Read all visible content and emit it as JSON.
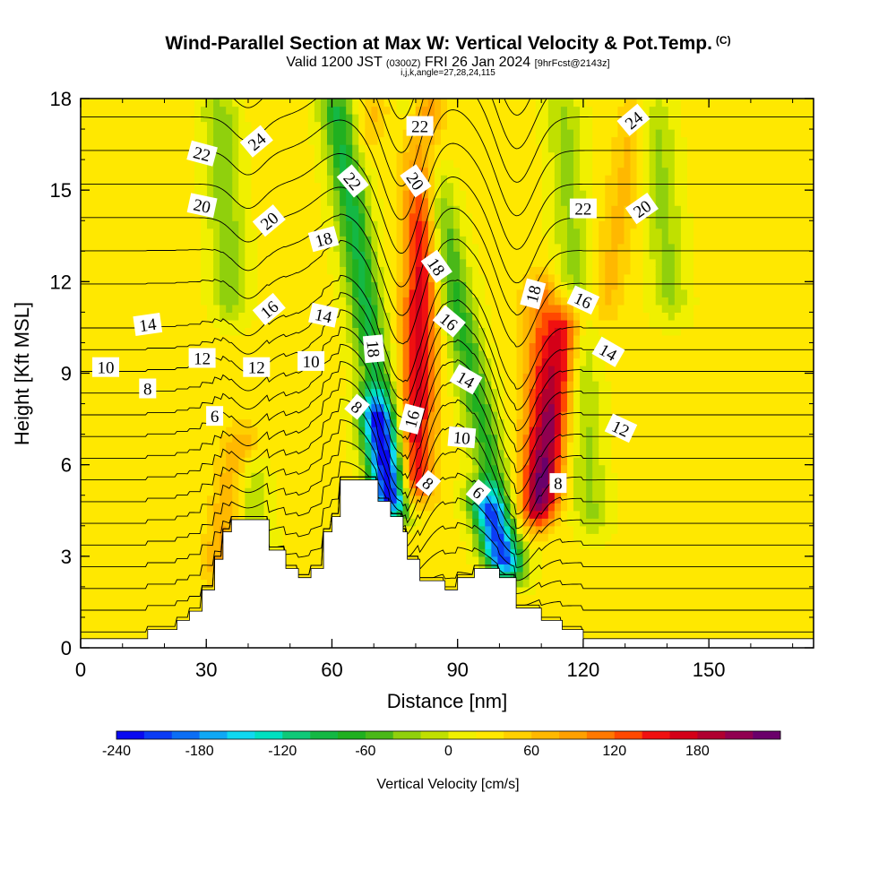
{
  "header": {
    "title": "Wind-Parallel Section at Max W: Vertical Velocity & Pot.Temp.",
    "title_mark": "(C)",
    "valid_prefix": "Valid 1200 JST",
    "valid_utc": "(0300Z)",
    "valid_date": "FRI 26 Jan 2024",
    "forecast": "[9hrFcst@2143z]",
    "grid_info": "i,j,k,angle=27,28,24,115"
  },
  "chart_data": {
    "type": "heatmap",
    "xlabel": "Distance [nm]",
    "ylabel": "Height [Kft MSL]",
    "xlim": [
      0,
      175
    ],
    "ylim": [
      0,
      18
    ],
    "x_ticks": [
      "0",
      "30",
      "60",
      "90",
      "120",
      "150"
    ],
    "y_ticks": [
      "0",
      "3",
      "6",
      "9",
      "12",
      "15",
      "18"
    ],
    "grid": false,
    "colorbar": {
      "title": "Vertical Velocity [cm/s]",
      "tick_labels": [
        "-240",
        "-180",
        "-120",
        "-60",
        "0",
        "60",
        "120",
        "180"
      ],
      "min": -240,
      "max": 220,
      "step": 20,
      "colors": [
        "#0a0af0",
        "#0c3cf5",
        "#0c6ef5",
        "#10a8f5",
        "#10d8f0",
        "#00e0c0",
        "#10c878",
        "#14b844",
        "#20b020",
        "#4ab818",
        "#90d00c",
        "#c0e000",
        "#f0f000",
        "#ffe800",
        "#ffd000",
        "#ffb800",
        "#ffa000",
        "#ff7800",
        "#ff4800",
        "#f01010",
        "#d40018",
        "#b00030",
        "#900050",
        "#6a006a"
      ]
    },
    "terrain_profile_kft": [
      [
        0,
        0.3
      ],
      [
        16,
        0.3
      ],
      [
        16,
        0.6
      ],
      [
        23,
        0.6
      ],
      [
        23,
        0.9
      ],
      [
        26,
        0.9
      ],
      [
        26,
        1.2
      ],
      [
        29,
        1.2
      ],
      [
        29,
        1.9
      ],
      [
        32,
        1.9
      ],
      [
        32,
        2.9
      ],
      [
        34,
        2.9
      ],
      [
        34,
        3.8
      ],
      [
        36,
        3.8
      ],
      [
        36,
        4.2
      ],
      [
        45,
        4.2
      ],
      [
        45,
        3.2
      ],
      [
        49,
        3.2
      ],
      [
        49,
        2.6
      ],
      [
        52,
        2.6
      ],
      [
        52,
        2.3
      ],
      [
        55,
        2.3
      ],
      [
        55,
        2.6
      ],
      [
        58,
        2.6
      ],
      [
        58,
        3.8
      ],
      [
        60,
        3.8
      ],
      [
        60,
        4.3
      ],
      [
        62,
        4.3
      ],
      [
        62,
        5.5
      ],
      [
        71,
        5.5
      ],
      [
        71,
        4.8
      ],
      [
        74,
        4.8
      ],
      [
        74,
        4.3
      ],
      [
        77,
        4.3
      ],
      [
        77,
        3.8
      ],
      [
        78,
        3.8
      ],
      [
        78,
        2.9
      ],
      [
        81,
        2.9
      ],
      [
        81,
        2.2
      ],
      [
        87,
        2.2
      ],
      [
        87,
        1.9
      ],
      [
        90,
        1.9
      ],
      [
        90,
        2.3
      ],
      [
        94,
        2.3
      ],
      [
        94,
        2.6
      ],
      [
        100,
        2.6
      ],
      [
        100,
        2.3
      ],
      [
        104,
        2.3
      ],
      [
        104,
        1.3
      ],
      [
        110,
        1.3
      ],
      [
        110,
        0.9
      ],
      [
        115,
        0.9
      ],
      [
        115,
        0.6
      ],
      [
        120,
        0.6
      ],
      [
        120,
        0.3
      ],
      [
        175,
        0.3
      ]
    ],
    "updraft_bands": [
      {
        "x_bottom": 33,
        "x_top": 38,
        "h_bottom": 2.5,
        "h_top": 7,
        "w": 60
      },
      {
        "x_bottom": 68,
        "x_top": 70,
        "h_bottom": 16.5,
        "h_top": 18,
        "w": 40
      },
      {
        "x_bottom": 80,
        "x_top": 82,
        "h_bottom": 5,
        "h_top": 18,
        "w": 140
      },
      {
        "x_bottom": 110,
        "x_top": 116,
        "h_bottom": 4.5,
        "h_top": 11,
        "w": 140
      },
      {
        "x_bottom": 125,
        "x_top": 133,
        "h_bottom": 11,
        "h_top": 18,
        "w": 40
      },
      {
        "x_bottom": 108,
        "x_top": 110,
        "h_bottom": 4,
        "h_top": 12,
        "w": 80
      }
    ],
    "downdraft_bands": [
      {
        "x_bottom": 36,
        "x_top": 33,
        "h_bottom": 11,
        "h_top": 18,
        "w": -60
      },
      {
        "x_bottom": 42,
        "x_top": 40,
        "h_bottom": 2.5,
        "h_top": 6,
        "w": -50
      },
      {
        "x_bottom": 75,
        "x_top": 61,
        "h_bottom": 4.5,
        "h_top": 18,
        "w": -110
      },
      {
        "x_bottom": 74,
        "x_top": 70,
        "h_bottom": 4.5,
        "h_top": 8,
        "w": -160
      },
      {
        "x_bottom": 103,
        "x_top": 80,
        "h_bottom": 2.5,
        "h_top": 18,
        "w": -90
      },
      {
        "x_bottom": 101,
        "x_top": 96,
        "h_bottom": 2.5,
        "h_top": 5,
        "w": -170
      },
      {
        "x_bottom": 122,
        "x_top": 115,
        "h_bottom": 4,
        "h_top": 18,
        "w": -50
      },
      {
        "x_bottom": 141,
        "x_top": 137,
        "h_bottom": 11,
        "h_top": 18,
        "w": -50
      }
    ],
    "theta_contour_levels": [
      2,
      3,
      4,
      5,
      6,
      7,
      8,
      9,
      10,
      11,
      12,
      13,
      14,
      15,
      16,
      17,
      18,
      19,
      20,
      21,
      22,
      23,
      24,
      25
    ],
    "theta_contour_labels": [
      {
        "text": "22",
        "x": 29,
        "h": 16.2,
        "angle": 15
      },
      {
        "text": "24",
        "x": 42,
        "h": 16.6,
        "angle": -40
      },
      {
        "text": "20",
        "x": 29,
        "h": 14.5,
        "angle": 12
      },
      {
        "text": "20",
        "x": 45,
        "h": 14.0,
        "angle": -40
      },
      {
        "text": "22",
        "x": 65,
        "h": 15.3,
        "angle": 50
      },
      {
        "text": "22",
        "x": 81,
        "h": 17.1,
        "angle": 0
      },
      {
        "text": "20",
        "x": 80,
        "h": 15.3,
        "angle": 55
      },
      {
        "text": "18",
        "x": 58,
        "h": 13.4,
        "angle": -15
      },
      {
        "text": "16",
        "x": 45,
        "h": 11.1,
        "angle": -40
      },
      {
        "text": "14",
        "x": 16,
        "h": 10.6,
        "angle": -8
      },
      {
        "text": "14",
        "x": 58,
        "h": 10.9,
        "angle": 12
      },
      {
        "text": "10",
        "x": 6,
        "h": 9.2,
        "angle": 0
      },
      {
        "text": "12",
        "x": 29,
        "h": 9.5,
        "angle": 0
      },
      {
        "text": "12",
        "x": 42,
        "h": 9.2,
        "angle": 0
      },
      {
        "text": "10",
        "x": 55,
        "h": 9.4,
        "angle": 0
      },
      {
        "text": "8",
        "x": 16,
        "h": 8.5,
        "angle": 0
      },
      {
        "text": "6",
        "x": 32,
        "h": 7.6,
        "angle": 0
      },
      {
        "text": "18",
        "x": 70,
        "h": 9.8,
        "angle": 85
      },
      {
        "text": "8",
        "x": 66,
        "h": 7.9,
        "angle": 40
      },
      {
        "text": "18",
        "x": 85,
        "h": 12.5,
        "angle": 55
      },
      {
        "text": "16",
        "x": 88,
        "h": 10.7,
        "angle": 40
      },
      {
        "text": "14",
        "x": 92,
        "h": 8.8,
        "angle": 30
      },
      {
        "text": "16",
        "x": 79,
        "h": 7.5,
        "angle": -75
      },
      {
        "text": "10",
        "x": 91,
        "h": 6.9,
        "angle": 5
      },
      {
        "text": "8",
        "x": 83,
        "h": 5.4,
        "angle": 40
      },
      {
        "text": "6",
        "x": 95,
        "h": 5.1,
        "angle": 40
      },
      {
        "text": "8",
        "x": 114,
        "h": 5.4,
        "angle": 0
      },
      {
        "text": "18",
        "x": 108,
        "h": 11.6,
        "angle": -75
      },
      {
        "text": "16",
        "x": 120,
        "h": 11.4,
        "angle": 25
      },
      {
        "text": "14",
        "x": 126,
        "h": 9.7,
        "angle": 30
      },
      {
        "text": "12",
        "x": 129,
        "h": 7.2,
        "angle": 25
      },
      {
        "text": "22",
        "x": 120,
        "h": 14.4,
        "angle": 0
      },
      {
        "text": "20",
        "x": 134,
        "h": 14.4,
        "angle": -35
      },
      {
        "text": "24",
        "x": 132,
        "h": 17.3,
        "angle": -40
      }
    ]
  }
}
